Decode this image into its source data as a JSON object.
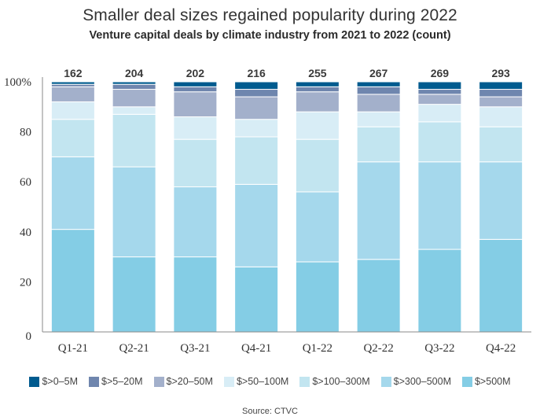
{
  "chart_data": {
    "type": "bar",
    "stacked": true,
    "normalized": true,
    "title": "Smaller deal sizes regained popularity during 2022",
    "subtitle": "Venture capital deals by climate industry from 2021 to 2022 (count)",
    "xlabel": "",
    "ylabel": "",
    "ylim": [
      0,
      100
    ],
    "yticks": [
      {
        "value": 0,
        "label": "0"
      },
      {
        "value": 20,
        "label": "20"
      },
      {
        "value": 40,
        "label": "40"
      },
      {
        "value": 60,
        "label": "60"
      },
      {
        "value": 80,
        "label": "80"
      },
      {
        "value": 100,
        "label": "100%"
      }
    ],
    "categories": [
      "Q1-21",
      "Q2-21",
      "Q3-21",
      "Q4-21",
      "Q1-22",
      "Q2-22",
      "Q3-22",
      "Q4-22"
    ],
    "totals": [
      162,
      204,
      202,
      216,
      255,
      267,
      269,
      293
    ],
    "series": [
      {
        "name": "$>500M",
        "color": "#84CDE5",
        "values": [
          41,
          30,
          30,
          26,
          28,
          29,
          33,
          37
        ]
      },
      {
        "name": "$>300–500M",
        "color": "#A5D8EC",
        "values": [
          29,
          36,
          28,
          33,
          28,
          39,
          35,
          31
        ]
      },
      {
        "name": "$>100–300M",
        "color": "#C2E5F0",
        "values": [
          15,
          21,
          19,
          19,
          21,
          14,
          16,
          14
        ]
      },
      {
        "name": "$>50–100M",
        "color": "#D8EDF6",
        "values": [
          7,
          3,
          9,
          7,
          11,
          6,
          7,
          8
        ]
      },
      {
        "name": "$>20–50M",
        "color": "#A3B0CB",
        "values": [
          6,
          7,
          10,
          9,
          8,
          7,
          4,
          4
        ]
      },
      {
        "name": "$>5–20M",
        "color": "#6F86AE",
        "values": [
          1,
          2,
          2,
          3,
          2,
          3,
          2,
          3
        ]
      },
      {
        "name": "$>0–5M",
        "color": "#005B8F",
        "values": [
          1,
          1,
          2,
          3,
          2,
          2,
          3,
          3
        ]
      }
    ],
    "legend_order": [
      "$>0–5M",
      "$>5–20M",
      "$>20–50M",
      "$>50–100M",
      "$>100–300M",
      "$>300–500M",
      "$>500M"
    ],
    "legend_position": "bottom",
    "grid": false,
    "source": "Source: CTVC"
  }
}
